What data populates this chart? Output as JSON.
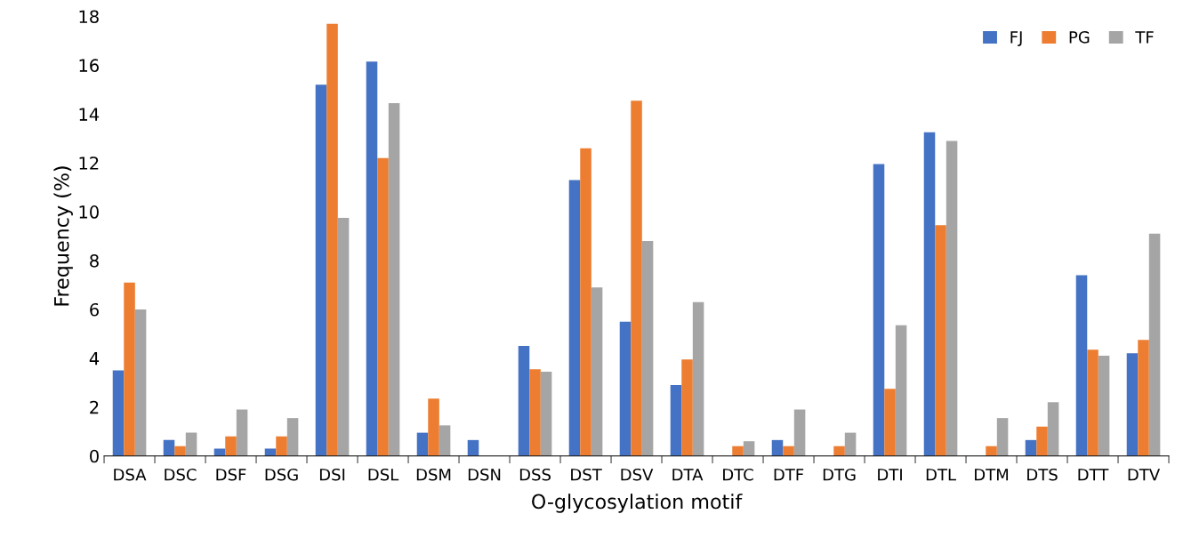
{
  "chart_data": {
    "type": "bar",
    "xlabel": "O-glycosylation motif",
    "ylabel": "Frequency (%)",
    "categories": [
      "DSA",
      "DSC",
      "DSF",
      "DSG",
      "DSI",
      "DSL",
      "DSM",
      "DSN",
      "DSS",
      "DST",
      "DSV",
      "DTA",
      "DTC",
      "DTF",
      "DTG",
      "DTI",
      "DTL",
      "DTM",
      "DTS",
      "DTT",
      "DTV"
    ],
    "series": [
      {
        "name": "FJ",
        "color": "#4472c4",
        "values": [
          3.5,
          0.65,
          0.3,
          0.3,
          15.2,
          16.15,
          0.95,
          0.65,
          4.5,
          11.3,
          5.5,
          2.9,
          0,
          0.65,
          0,
          11.95,
          13.25,
          0,
          0.65,
          7.4,
          4.2
        ]
      },
      {
        "name": "PG",
        "color": "#ed7d31",
        "values": [
          7.1,
          0.4,
          0.8,
          0.8,
          17.7,
          12.2,
          2.35,
          0,
          3.55,
          12.6,
          14.55,
          3.95,
          0.4,
          0.4,
          0.4,
          2.75,
          9.45,
          0.4,
          1.2,
          4.35,
          4.75
        ]
      },
      {
        "name": "TF",
        "color": "#a5a5a5",
        "values": [
          6.0,
          0.95,
          1.9,
          1.55,
          9.75,
          14.45,
          1.25,
          0,
          3.45,
          6.9,
          8.8,
          6.3,
          0.6,
          1.9,
          0.95,
          5.35,
          12.9,
          1.55,
          2.2,
          4.1,
          9.1
        ]
      }
    ],
    "ylim": [
      0,
      18
    ],
    "yticks": [
      0,
      2,
      4,
      6,
      8,
      10,
      12,
      14,
      16,
      18
    ],
    "grid": false,
    "legend": "top right"
  }
}
